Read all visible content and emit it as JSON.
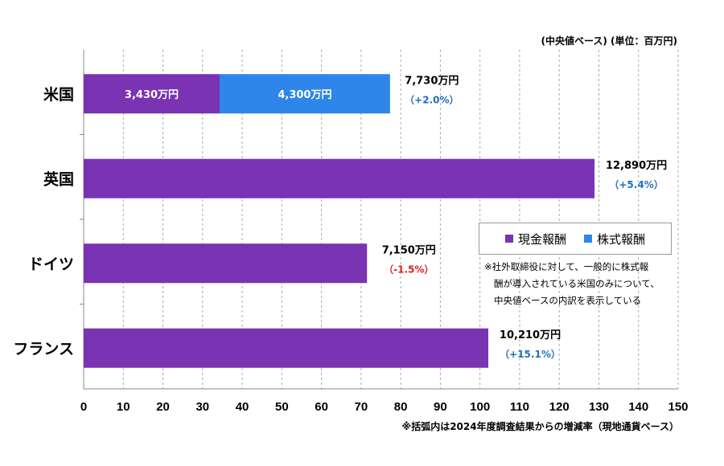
{
  "header": {
    "unit_note": "(中央値ベース) (単位：百万円)"
  },
  "footer": {
    "note": "※括弧内は2024年度調査結果からの増減率（現地通貨ベース）"
  },
  "legend": {
    "items": [
      {
        "label": "現金報酬",
        "color": "#7a33b2"
      },
      {
        "label": "株式報酬",
        "color": "#2e86ea"
      }
    ]
  },
  "annotation": [
    "※社外取締役に対して、一般的に株式報",
    "酬が導入されている米国のみについて、",
    "中央値ベースの内訳を表示している"
  ],
  "chart_data": {
    "type": "bar",
    "orientation": "horizontal",
    "stacked": true,
    "categories": [
      "米国",
      "英国",
      "ドイツ",
      "フランス"
    ],
    "series": [
      {
        "name": "現金報酬",
        "values": [
          34.3,
          128.9,
          71.5,
          102.1
        ],
        "labels": [
          "3,430万円",
          "",
          "",
          ""
        ],
        "color": "#7a33b2"
      },
      {
        "name": "株式報酬",
        "values": [
          43.0,
          0,
          0,
          0
        ],
        "labels": [
          "4,300万円",
          "",
          "",
          ""
        ],
        "color": "#2e86ea"
      }
    ],
    "totals": [
      "7,730万円",
      "12,890万円",
      "7,150万円",
      "10,210万円"
    ],
    "changes": [
      {
        "text": "（+2.0%）",
        "color": "#1f6fc0"
      },
      {
        "text": "（+5.4%）",
        "color": "#1f6fc0"
      },
      {
        "text": "（-1.5%）",
        "color": "#e02020"
      },
      {
        "text": "（+15.1%）",
        "color": "#1f6fc0"
      }
    ],
    "xlim": [
      0,
      150
    ],
    "xticks": [
      0,
      10,
      20,
      30,
      40,
      50,
      60,
      70,
      80,
      90,
      100,
      110,
      120,
      130,
      140,
      150
    ],
    "grid": "vertical dashed",
    "legend_position": "right-middle"
  }
}
